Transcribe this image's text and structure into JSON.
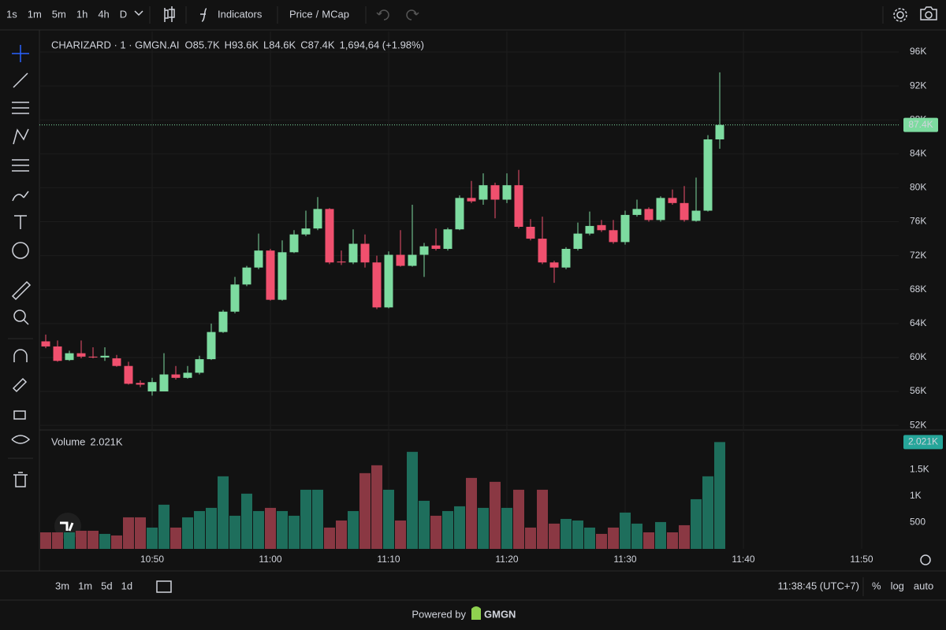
{
  "ui": {
    "intervals": [
      "1s",
      "1m",
      "5m",
      "1h",
      "4h",
      "D"
    ],
    "active_interval": "1m",
    "indicators": "Indicators",
    "price_toggle": [
      "Price",
      "/",
      "MCap"
    ],
    "ranges": [
      "3m",
      "1m",
      "5d",
      "1d"
    ],
    "clock": "11:38:45 (UTC+7)",
    "scale_options": [
      "%",
      "log",
      "auto"
    ],
    "powered_by": "Powered by",
    "brand": "GMGN"
  },
  "chart_data": {
    "type": "candlestick",
    "title": "CHARIZARD · 1 · GMGN.AI",
    "ohlc_legend": [
      {
        "label": "O",
        "value": "85.7K"
      },
      {
        "label": "H",
        "value": "93.6K"
      },
      {
        "label": "L",
        "value": "84.6K"
      },
      {
        "label": "C",
        "value": "87.4K"
      }
    ],
    "change": "1,694,64 (+1.98%)",
    "up_color": "#7ddba0",
    "down_color": "#f0506e",
    "last_price_label": "87.4K",
    "x": [
      "10:41",
      "10:42",
      "10:43",
      "10:44",
      "10:45",
      "10:46",
      "10:47",
      "10:48",
      "10:49",
      "10:50",
      "10:51",
      "10:52",
      "10:53",
      "10:54",
      "10:55",
      "10:56",
      "10:57",
      "10:58",
      "10:59",
      "11:00",
      "11:01",
      "11:02",
      "11:03",
      "11:04",
      "11:05",
      "11:06",
      "11:07",
      "11:08",
      "11:09",
      "11:10",
      "11:11",
      "11:12",
      "11:13",
      "11:14",
      "11:15",
      "11:16",
      "11:17",
      "11:18",
      "11:19",
      "11:20",
      "11:21",
      "11:22",
      "11:23",
      "11:24",
      "11:25",
      "11:26",
      "11:27",
      "11:28",
      "11:29",
      "11:30",
      "11:31",
      "11:32",
      "11:33",
      "11:34",
      "11:35",
      "11:36",
      "11:37",
      "11:38"
    ],
    "open": [
      61900,
      61300,
      59700,
      60500,
      60100,
      60000,
      59900,
      59000,
      57000,
      56000,
      56000,
      58000,
      57600,
      58200,
      59800,
      63000,
      65400,
      68600,
      70600,
      72600,
      66800,
      72400,
      74500,
      75200,
      77500,
      71300,
      71200,
      73400,
      71200,
      65900,
      72100,
      70800,
      72100,
      73200,
      72800,
      75100,
      78800,
      78600,
      80300,
      78600,
      80300,
      75400,
      74000,
      71200,
      70600,
      72800,
      74600,
      75600,
      75000,
      73600,
      76800,
      77500,
      76200,
      78800,
      78200,
      76100,
      77300,
      85700
    ],
    "high": [
      62700,
      62000,
      60800,
      62000,
      61200,
      61200,
      60300,
      59500,
      57300,
      57600,
      60500,
      59000,
      59000,
      60200,
      64000,
      65600,
      69500,
      70800,
      74600,
      72800,
      73800,
      75000,
      77300,
      78900,
      77600,
      72600,
      75100,
      74500,
      72000,
      72500,
      75000,
      78000,
      73500,
      75200,
      75300,
      79100,
      80800,
      81700,
      80600,
      81700,
      82100,
      76300,
      76600,
      71400,
      73000,
      75900,
      77200,
      76200,
      76200,
      77300,
      78600,
      77700,
      79000,
      79800,
      80200,
      81200,
      86200,
      93600
    ],
    "low": [
      61100,
      59500,
      59600,
      59900,
      59900,
      59600,
      58900,
      56800,
      56500,
      55500,
      56000,
      57400,
      57500,
      58000,
      59700,
      62900,
      65200,
      68400,
      70400,
      66700,
      66700,
      72300,
      74300,
      75000,
      71000,
      70900,
      71000,
      70600,
      65700,
      65800,
      70700,
      70700,
      69500,
      72600,
      72600,
      75000,
      78200,
      78000,
      76400,
      78200,
      75200,
      73800,
      71000,
      68800,
      70400,
      72600,
      74400,
      74800,
      73400,
      73300,
      76600,
      76000,
      76000,
      78000,
      76000,
      76000,
      77200,
      84600
    ],
    "close": [
      61300,
      59600,
      60500,
      60100,
      60000,
      60200,
      59000,
      56900,
      56800,
      57100,
      58000,
      57600,
      58200,
      59800,
      63000,
      65400,
      68600,
      70600,
      72600,
      66800,
      72400,
      74500,
      75200,
      77500,
      71200,
      71200,
      73400,
      71200,
      65900,
      72100,
      70800,
      72100,
      73100,
      72800,
      75100,
      78800,
      78400,
      80300,
      78600,
      80300,
      75400,
      74000,
      71200,
      70600,
      72800,
      74600,
      75500,
      75000,
      73600,
      76800,
      77500,
      76200,
      78800,
      78200,
      76200,
      77300,
      85700,
      87400
    ],
    "xlim": [
      "10:40:28",
      "11:53:08"
    ],
    "xticks": [
      "10:50",
      "11:00",
      "11:10",
      "11:20",
      "11:30",
      "11:40",
      "11:50"
    ],
    "ylim": [
      51550,
      97950
    ],
    "yticks": [
      {
        "value": 52000,
        "label": "52K"
      },
      {
        "value": 56000,
        "label": "56K"
      },
      {
        "value": 60000,
        "label": "60K"
      },
      {
        "value": 64000,
        "label": "64K"
      },
      {
        "value": 68000,
        "label": "68K"
      },
      {
        "value": 72000,
        "label": "72K"
      },
      {
        "value": 76000,
        "label": "76K"
      },
      {
        "value": 80000,
        "label": "80K"
      },
      {
        "value": 84000,
        "label": "84K"
      },
      {
        "value": 88000,
        "label": "88K"
      },
      {
        "value": 92000,
        "label": "92K"
      },
      {
        "value": 96000,
        "label": "96K"
      }
    ],
    "grid": true,
    "volume": {
      "name": "Volume",
      "value_label": "2.021K",
      "up_color": "#1e6e5c",
      "down_color": "#8a3843",
      "label_color": "#26a69a",
      "values": [
        313,
        313,
        313,
        343,
        343,
        284,
        254,
        597,
        597,
        403,
        836,
        403,
        597,
        716,
        776,
        1373,
        627,
        1045,
        716,
        776,
        716,
        627,
        1119,
        1119,
        403,
        537,
        716,
        1433,
        1582,
        1119,
        537,
        1836,
        910,
        627,
        716,
        806,
        1343,
        776,
        1269,
        776,
        1119,
        403,
        1119,
        478,
        567,
        537,
        403,
        284,
        403,
        687,
        478,
        313,
        508,
        313,
        448,
        940,
        1373,
        2021
      ],
      "ylim": [
        0,
        2220
      ],
      "yticks": [
        500,
        {
          "value": 1000,
          "label": "1K"
        },
        {
          "value": 1500,
          "label": "1.5K"
        }
      ]
    }
  }
}
